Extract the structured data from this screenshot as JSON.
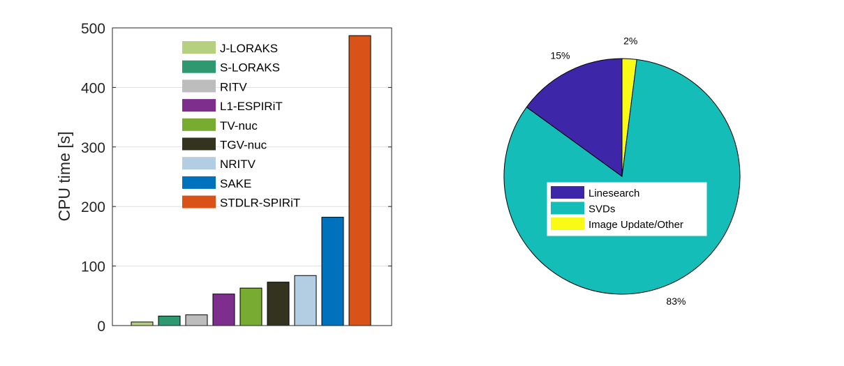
{
  "chart_data": [
    {
      "type": "bar",
      "ylabel": "CPU time [s]",
      "ylim": [
        0,
        500
      ],
      "yticks": [
        "0",
        "100",
        "200",
        "300",
        "400",
        "500"
      ],
      "grid": true,
      "legend_position": "top-center",
      "series": [
        {
          "name": "J-LORAKS",
          "value": 6,
          "color": "#B5D07F"
        },
        {
          "name": "S-LORAKS",
          "value": 16,
          "color": "#2E9970"
        },
        {
          "name": "RITV",
          "value": 18,
          "color": "#BDBDBD"
        },
        {
          "name": "L1-ESPIRiT",
          "value": 53,
          "color": "#7E2F8E"
        },
        {
          "name": "TV-nuc",
          "value": 63,
          "color": "#77AC30"
        },
        {
          "name": "TGV-nuc",
          "value": 73,
          "color": "#333320"
        },
        {
          "name": "NRITV",
          "value": 84,
          "color": "#B3CDE3"
        },
        {
          "name": "SAKE",
          "value": 182,
          "color": "#0072BD"
        },
        {
          "name": "STDLR-SPIRiT",
          "value": 487,
          "color": "#D95319"
        }
      ]
    },
    {
      "type": "pie",
      "legend_position": "center",
      "slices": [
        {
          "name": "Linesearch",
          "value": 15,
          "label": "15%",
          "color": "#3E26A8"
        },
        {
          "name": "SVDs",
          "value": 83,
          "label": "83%",
          "color": "#15BDB8"
        },
        {
          "name": "Image Update/Other",
          "value": 2,
          "label": "2%",
          "color": "#F9FB14"
        }
      ]
    }
  ]
}
